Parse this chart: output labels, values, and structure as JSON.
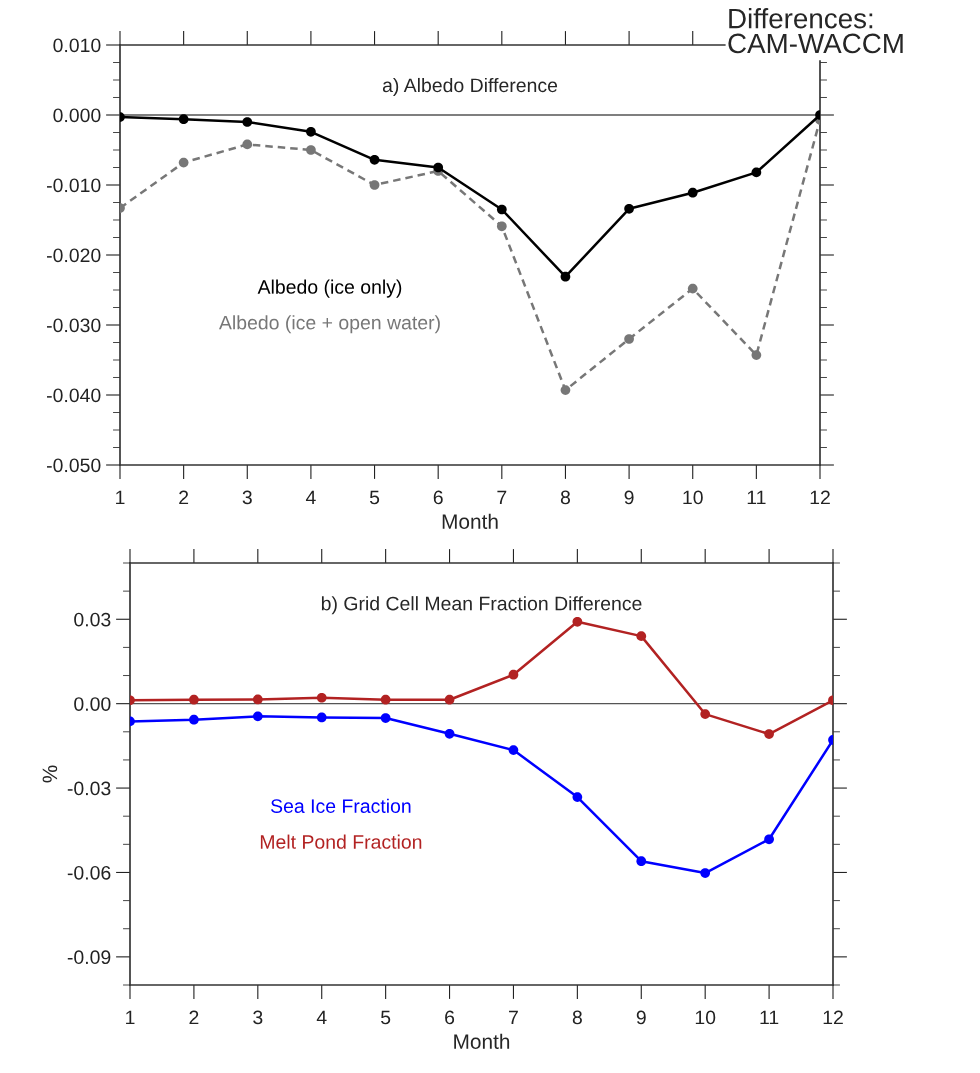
{
  "chart_data": [
    {
      "type": "line",
      "title": "a) Albedo Difference",
      "xlabel": "Month",
      "x": [
        1,
        2,
        3,
        4,
        5,
        6,
        7,
        8,
        9,
        10,
        11,
        12
      ],
      "xlim": [
        1,
        12
      ],
      "xticks": [
        1,
        2,
        3,
        4,
        5,
        6,
        7,
        8,
        9,
        10,
        11,
        12
      ],
      "ylim": [
        -0.05,
        0.01
      ],
      "yticks": [
        {
          "value": -0.05,
          "label": "-0.050"
        },
        {
          "value": -0.04,
          "label": "-0.040"
        },
        {
          "value": -0.03,
          "label": "-0.030"
        },
        {
          "value": -0.02,
          "label": "-0.020"
        },
        {
          "value": -0.01,
          "label": "-0.010"
        },
        {
          "value": 0,
          "label": "0.000"
        },
        {
          "value": 0.01,
          "label": "0.010"
        }
      ],
      "grid": false,
      "legend": "bottom left",
      "marker": "circle",
      "ref_lines": [
        {
          "axis": "y",
          "value": 0,
          "color": "#555555"
        }
      ],
      "annotations": [
        "Differences:\nCAM-WACCM"
      ],
      "series": [
        {
          "name": "Albedo (ice only)",
          "color": "#000000",
          "line_style": "solid",
          "values": [
            -0.0003,
            -0.0006,
            -0.001,
            -0.0024,
            -0.0064,
            -0.0075,
            -0.0135,
            -0.0231,
            -0.0134,
            -0.0111,
            -0.0082,
            0.0
          ]
        },
        {
          "name": "Albedo (ice + open water)",
          "color": "#777777",
          "line_style": "dashed",
          "values": [
            -0.0133,
            -0.0068,
            -0.0042,
            -0.005,
            -0.01,
            -0.008,
            -0.0159,
            -0.0393,
            -0.032,
            -0.0248,
            -0.0343,
            -0.0007
          ]
        }
      ]
    },
    {
      "type": "line",
      "title": "b) Grid Cell Mean Fraction Difference",
      "xlabel": "Month",
      "ylabel": "%",
      "x": [
        1,
        2,
        3,
        4,
        5,
        6,
        7,
        8,
        9,
        10,
        11,
        12
      ],
      "xlim": [
        1,
        12
      ],
      "xticks": [
        1,
        2,
        3,
        4,
        5,
        6,
        7,
        8,
        9,
        10,
        11,
        12
      ],
      "ylim": [
        -0.1,
        0.05
      ],
      "yticks": [
        {
          "value": -0.09,
          "label": "-0.09"
        },
        {
          "value": -0.06,
          "label": "-0.06"
        },
        {
          "value": -0.03,
          "label": "-0.03"
        },
        {
          "value": 0,
          "label": "0.00"
        },
        {
          "value": 0.03,
          "label": "0.03"
        }
      ],
      "grid": false,
      "legend": "bottom left",
      "marker": "circle",
      "ref_lines": [
        {
          "axis": "y",
          "value": 0,
          "color": "#555555"
        }
      ],
      "series": [
        {
          "name": "Sea Ice Fraction",
          "color": "#0000ff",
          "line_style": "solid",
          "values": [
            -0.0063,
            -0.0057,
            -0.0045,
            -0.0049,
            -0.0051,
            -0.0107,
            -0.0165,
            -0.0332,
            -0.056,
            -0.0602,
            -0.0482,
            -0.0129
          ]
        },
        {
          "name": "Melt Pond Fraction",
          "color": "#b22222",
          "line_style": "solid",
          "values": [
            0.0012,
            0.0014,
            0.0015,
            0.0021,
            0.0014,
            0.0014,
            0.0103,
            0.0291,
            0.024,
            -0.0037,
            -0.0108,
            0.0012
          ]
        }
      ]
    }
  ]
}
